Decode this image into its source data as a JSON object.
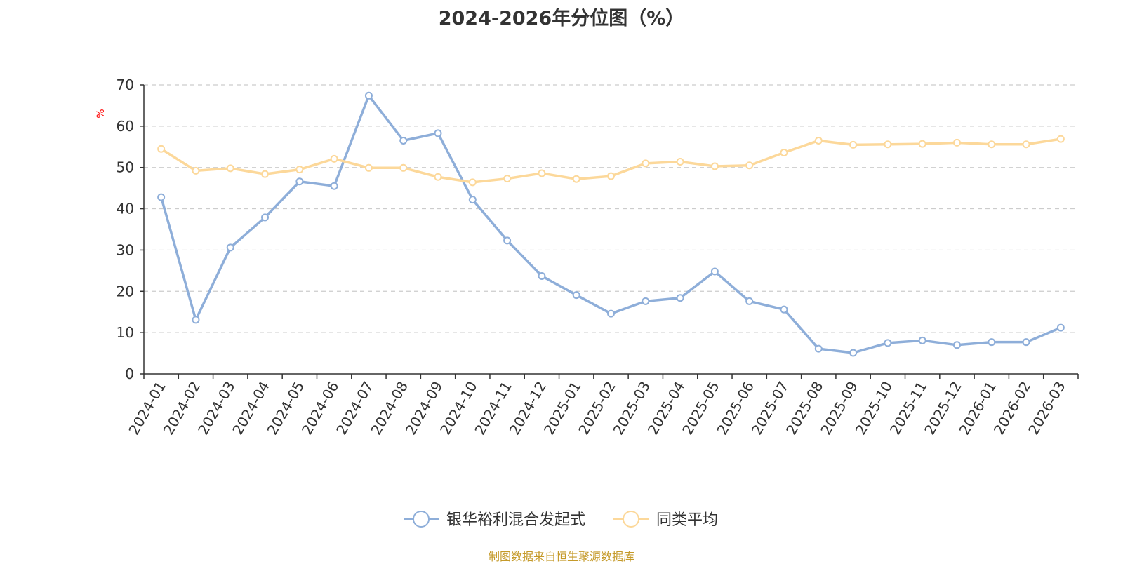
{
  "chart_data": {
    "type": "line",
    "title": "2024-2026年分位图（%）",
    "ylabel": "%",
    "xlabel": "",
    "ylim": [
      0,
      70
    ],
    "yticks": [
      0,
      10,
      20,
      30,
      40,
      50,
      60,
      70
    ],
    "grid": true,
    "legend_position": "bottom",
    "categories": [
      "2024-01",
      "2024-02",
      "2024-03",
      "2024-04",
      "2024-05",
      "2024-06",
      "2024-07",
      "2024-08",
      "2024-09",
      "2024-10",
      "2024-11",
      "2024-12",
      "2025-01",
      "2025-02",
      "2025-03",
      "2025-04",
      "2025-05",
      "2025-06",
      "2025-07",
      "2025-08",
      "2025-09",
      "2025-10",
      "2025-11",
      "2025-12",
      "2026-01",
      "2026-02",
      "2026-03"
    ],
    "series": [
      {
        "name": "银华裕利混合发起式",
        "color": "#8eaed9",
        "values": [
          42.8,
          13.1,
          30.6,
          37.9,
          46.6,
          45.5,
          67.4,
          56.5,
          58.3,
          42.2,
          32.3,
          23.7,
          19.1,
          14.6,
          17.6,
          18.4,
          24.8,
          17.6,
          15.6,
          6.1,
          5.1,
          7.5,
          8.1,
          7.0,
          7.7,
          7.7,
          11.2
        ]
      },
      {
        "name": "同类平均",
        "color": "#fcd89a",
        "values": [
          54.5,
          49.2,
          49.8,
          48.4,
          49.5,
          52.1,
          49.9,
          49.9,
          47.7,
          46.4,
          47.3,
          48.6,
          47.2,
          47.9,
          51.0,
          51.4,
          50.3,
          50.5,
          53.6,
          56.5,
          55.5,
          55.6,
          55.7,
          56.0,
          55.6,
          55.6,
          56.9
        ]
      }
    ]
  },
  "source_note": "制图数据来自恒生聚源数据库"
}
